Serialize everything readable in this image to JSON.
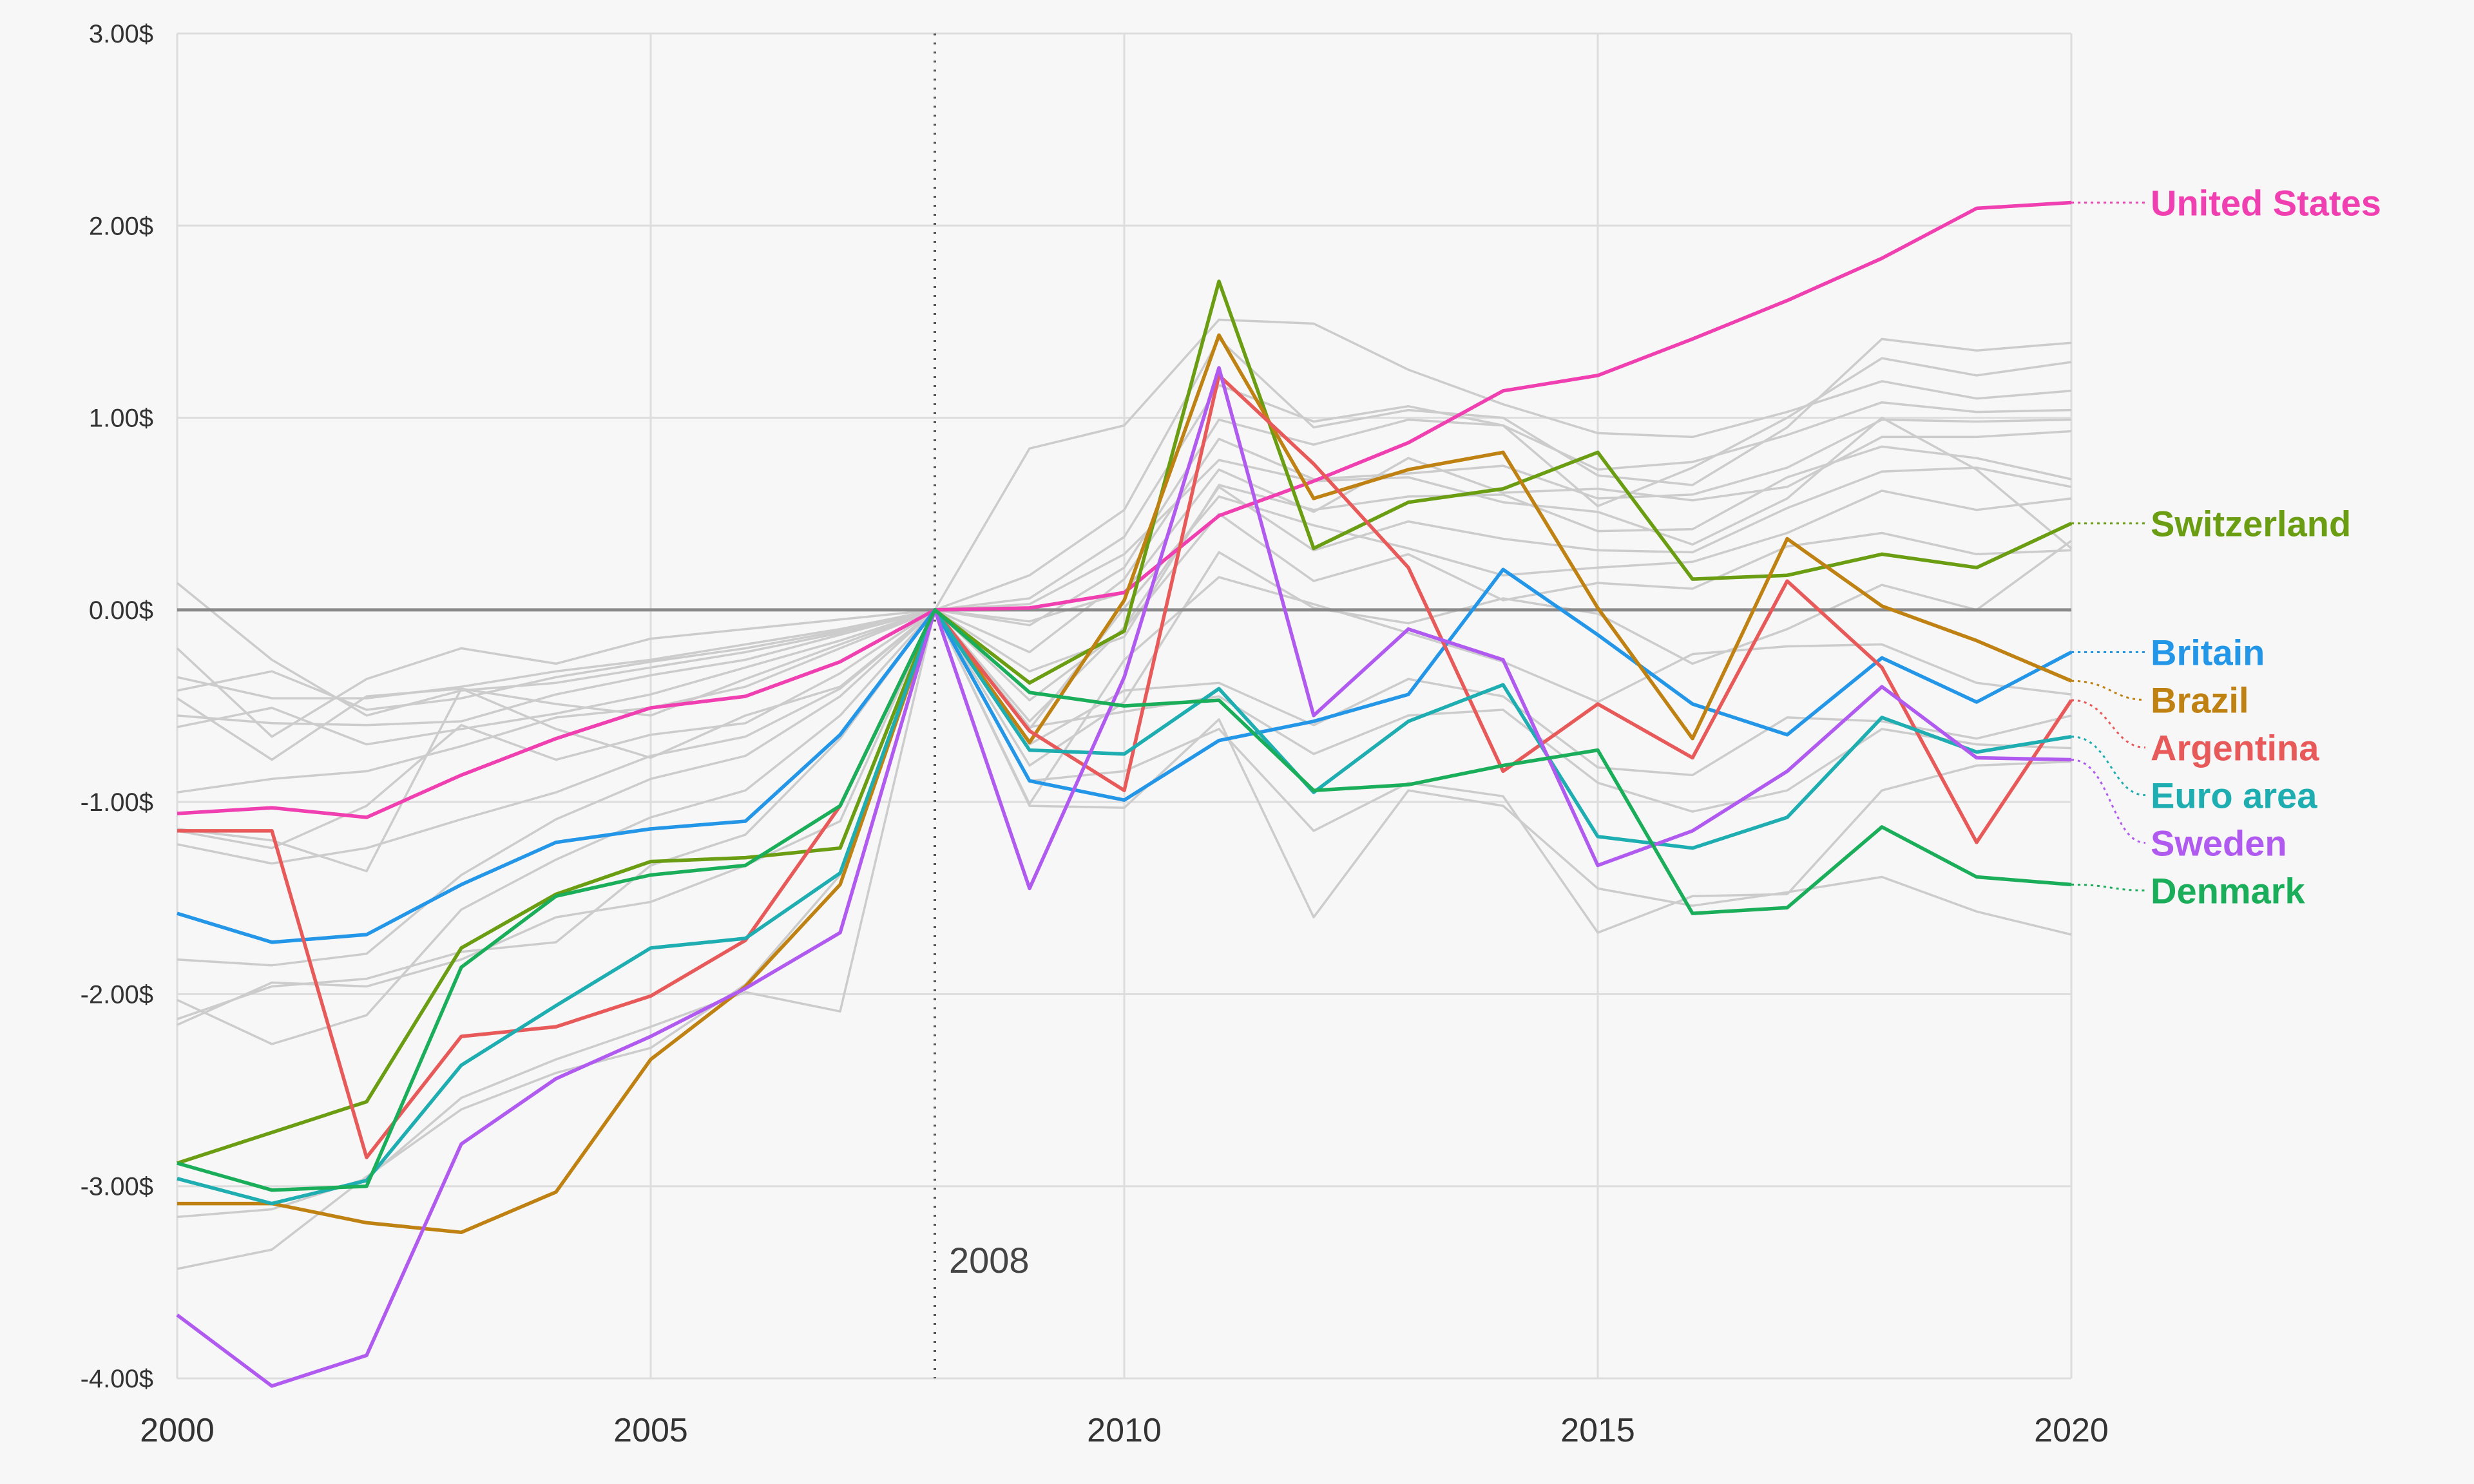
{
  "chart_data": {
    "type": "line",
    "x": [
      2000,
      2001,
      2002,
      2003,
      2004,
      2005,
      2006,
      2007,
      2008,
      2009,
      2010,
      2011,
      2012,
      2013,
      2014,
      2015,
      2016,
      2017,
      2018,
      2019,
      2020
    ],
    "xlim": [
      2000,
      2020
    ],
    "ylim": [
      -4,
      3
    ],
    "xticks": [
      2000,
      2005,
      2010,
      2015,
      2020
    ],
    "xtick_labels": [
      "2000",
      "2005",
      "2010",
      "2015",
      "2020"
    ],
    "yticks": [
      -4,
      -3,
      -2,
      -1,
      0,
      1,
      2,
      3
    ],
    "ytick_labels": [
      "-4.00$",
      "-3.00$",
      "-2.00$",
      "-1.00$",
      "0.00$",
      "1.00$",
      "2.00$",
      "3.00$"
    ],
    "grid": true,
    "reference_line": {
      "x": 2008,
      "label": "2008"
    },
    "legend": "direct labels at right end of lines",
    "series": [
      {
        "name": "United States",
        "color": "#f03fb0",
        "values": [
          -1.06,
          -1.03,
          -1.08,
          -0.86,
          -0.67,
          -0.51,
          -0.45,
          -0.27,
          0.0,
          0.01,
          0.09,
          0.49,
          0.67,
          0.87,
          1.14,
          1.22,
          1.41,
          1.61,
          1.83,
          2.09,
          2.12
        ]
      },
      {
        "name": "Switzerland",
        "color": "#6a9d12",
        "values": [
          -2.88,
          -2.72,
          -2.56,
          -1.76,
          -1.48,
          -1.31,
          -1.29,
          -1.24,
          0.0,
          -0.38,
          -0.11,
          1.71,
          0.32,
          0.56,
          0.63,
          0.82,
          0.16,
          0.18,
          0.29,
          0.22,
          0.45
        ]
      },
      {
        "name": "Britain",
        "color": "#2496e8",
        "values": [
          -1.58,
          -1.73,
          -1.69,
          -1.43,
          -1.21,
          -1.14,
          -1.1,
          -0.65,
          0.0,
          -0.89,
          -0.99,
          -0.68,
          -0.58,
          -0.44,
          0.21,
          -0.13,
          -0.49,
          -0.65,
          -0.25,
          -0.48,
          -0.22
        ]
      },
      {
        "name": "Brazil",
        "color": "#bf8212",
        "values": [
          -3.09,
          -3.09,
          -3.19,
          -3.24,
          -3.03,
          -2.34,
          -1.96,
          -1.43,
          0.0,
          -0.69,
          0.05,
          1.43,
          0.58,
          0.73,
          0.82,
          0.01,
          -0.67,
          0.37,
          0.02,
          -0.16,
          -0.37
        ]
      },
      {
        "name": "Argentina",
        "color": "#e85a5a",
        "values": [
          -1.15,
          -1.15,
          -2.85,
          -2.22,
          -2.17,
          -2.01,
          -1.72,
          -1.02,
          0.0,
          -0.63,
          -0.94,
          1.22,
          0.76,
          0.22,
          -0.84,
          -0.49,
          -0.77,
          0.15,
          -0.3,
          -1.21,
          -0.47
        ]
      },
      {
        "name": "Euro area",
        "color": "#1eadb0",
        "values": [
          -2.96,
          -3.09,
          -2.97,
          -2.37,
          -2.06,
          -1.76,
          -1.71,
          -1.37,
          0.0,
          -0.73,
          -0.75,
          -0.41,
          -0.95,
          -0.58,
          -0.39,
          -1.18,
          -1.24,
          -1.08,
          -0.56,
          -0.74,
          -0.66
        ]
      },
      {
        "name": "Sweden",
        "color": "#b05af0",
        "values": [
          -3.67,
          -4.04,
          -3.88,
          -2.78,
          -2.44,
          -2.22,
          -1.97,
          -1.68,
          0.0,
          -1.45,
          -0.35,
          1.26,
          -0.55,
          -0.1,
          -0.26,
          -1.33,
          -1.15,
          -0.84,
          -0.4,
          -0.77,
          -0.78
        ]
      },
      {
        "name": "Denmark",
        "color": "#1aae5a",
        "values": [
          -2.88,
          -3.02,
          -3.0,
          -1.86,
          -1.49,
          -1.38,
          -1.33,
          -1.02,
          0.0,
          -0.43,
          -0.5,
          -0.47,
          -0.94,
          -0.91,
          -0.81,
          -0.73,
          -1.58,
          -1.55,
          -1.13,
          -1.39,
          -1.43
        ]
      }
    ],
    "background_series": [
      {
        "values": [
          0.14,
          -0.26,
          -0.55,
          -0.42,
          -0.38,
          -0.3,
          -0.22,
          -0.12,
          0.0,
          0.84,
          0.96,
          1.51,
          1.49,
          1.25,
          1.07,
          0.92,
          0.9,
          1.03,
          1.19,
          1.1,
          1.14
        ]
      },
      {
        "values": [
          -0.2,
          -0.66,
          -0.36,
          -0.2,
          -0.28,
          -0.15,
          -0.1,
          -0.05,
          0.0,
          0.18,
          0.52,
          1.41,
          0.95,
          1.04,
          1.0,
          0.7,
          0.65,
          0.95,
          1.41,
          1.35,
          1.39
        ]
      },
      {
        "values": [
          -0.35,
          -0.46,
          -0.46,
          -0.4,
          -0.32,
          -0.26,
          -0.18,
          -0.1,
          0.0,
          0.06,
          0.38,
          1.17,
          0.98,
          1.06,
          0.96,
          0.54,
          0.74,
          1.0,
          1.31,
          1.22,
          1.29
        ]
      },
      {
        "values": [
          -0.42,
          -0.32,
          -0.52,
          -0.46,
          -0.35,
          -0.27,
          -0.2,
          -0.11,
          0.0,
          -0.08,
          0.22,
          0.99,
          0.86,
          0.99,
          0.96,
          0.73,
          0.77,
          0.91,
          1.08,
          1.03,
          1.04
        ]
      },
      {
        "values": [
          -0.55,
          -0.59,
          -0.6,
          -0.58,
          -0.44,
          -0.34,
          -0.26,
          -0.13,
          0.0,
          -0.22,
          0.16,
          0.89,
          0.68,
          0.71,
          0.75,
          0.58,
          0.6,
          0.74,
          0.99,
          0.98,
          0.99
        ]
      },
      {
        "values": [
          -0.61,
          -0.51,
          -0.7,
          -0.62,
          -0.54,
          -0.44,
          -0.3,
          -0.16,
          0.0,
          -0.06,
          0.09,
          0.73,
          0.51,
          0.79,
          0.61,
          0.63,
          0.57,
          0.64,
          0.9,
          0.9,
          0.93
        ]
      },
      {
        "values": [
          -0.95,
          -0.88,
          -0.84,
          -0.71,
          -0.56,
          -0.51,
          -0.4,
          -0.2,
          0.0,
          -0.32,
          -0.14,
          0.65,
          0.52,
          0.59,
          0.6,
          0.41,
          0.42,
          0.69,
          0.85,
          0.79,
          0.68
        ]
      },
      {
        "values": [
          -1.14,
          -1.2,
          -1.36,
          -0.41,
          -0.62,
          -0.77,
          -0.55,
          -0.4,
          0.0,
          -0.58,
          -0.09,
          0.64,
          0.31,
          0.46,
          0.37,
          0.31,
          0.3,
          0.53,
          0.72,
          0.74,
          0.64
        ]
      },
      {
        "values": [
          -1.15,
          -1.24,
          -1.02,
          -0.6,
          -0.78,
          -0.65,
          -0.59,
          -0.33,
          0.0,
          -0.62,
          0.01,
          0.59,
          0.44,
          0.32,
          0.18,
          0.22,
          0.25,
          0.4,
          0.62,
          0.52,
          0.58
        ]
      },
      {
        "values": [
          -1.22,
          -1.32,
          -1.24,
          -1.09,
          -0.95,
          -0.76,
          -0.66,
          -0.41,
          0.0,
          -0.47,
          -0.1,
          0.5,
          0.15,
          0.29,
          0.05,
          0.14,
          0.11,
          0.33,
          0.4,
          0.29,
          0.31
        ]
      },
      {
        "values": [
          -1.82,
          -1.85,
          -1.79,
          -1.38,
          -1.09,
          -0.88,
          -0.76,
          -0.45,
          0.0,
          -0.81,
          -0.48,
          0.3,
          0.01,
          -0.07,
          0.06,
          -0.02,
          -0.28,
          -0.1,
          0.13,
          0.0,
          0.36
        ]
      },
      {
        "values": [
          -2.03,
          -2.26,
          -2.11,
          -1.56,
          -1.3,
          -1.08,
          -0.94,
          -0.55,
          0.0,
          -1.01,
          -0.26,
          0.17,
          0.03,
          -0.12,
          -0.27,
          -0.48,
          -0.23,
          -0.19,
          -0.18,
          -0.38,
          -0.44
        ]
      },
      {
        "values": [
          -2.13,
          -1.96,
          -1.92,
          -1.78,
          -1.73,
          -1.33,
          -1.17,
          -0.67,
          0.0,
          -0.7,
          -0.42,
          -0.38,
          -0.6,
          -0.36,
          -0.45,
          -0.82,
          -0.86,
          -0.56,
          -0.58,
          -0.67,
          -0.55
        ]
      },
      {
        "values": [
          -2.16,
          -1.94,
          -1.96,
          -1.82,
          -1.6,
          -1.52,
          -1.33,
          -1.1,
          0.0,
          -0.61,
          -0.53,
          -0.45,
          -0.75,
          -0.55,
          -0.52,
          -0.9,
          -1.05,
          -0.94,
          -0.62,
          -0.7,
          -0.72
        ]
      },
      {
        "values": [
          -3.16,
          -3.12,
          -2.96,
          -2.54,
          -2.34,
          -2.17,
          -1.99,
          -2.09,
          0.0,
          -1.02,
          -1.03,
          -0.57,
          -1.6,
          -0.94,
          -1.02,
          -1.45,
          -1.54,
          -1.47,
          -1.39,
          -1.57,
          -1.69
        ]
      },
      {
        "values": [
          -3.43,
          -3.33,
          -2.95,
          -2.6,
          -2.41,
          -2.28,
          -1.95,
          -1.38,
          0.0,
          -0.89,
          -0.84,
          -0.62,
          -1.15,
          -0.9,
          -0.97,
          -1.68,
          -1.49,
          -1.48,
          -0.94,
          -0.81,
          -0.79
        ]
      },
      {
        "values": [
          -0.46,
          -0.78,
          -0.45,
          -0.41,
          -0.49,
          -0.55,
          -0.36,
          -0.18,
          0.0,
          0.03,
          0.29,
          0.78,
          0.67,
          0.69,
          0.56,
          0.51,
          0.34,
          0.58,
          1.0,
          0.73,
          0.32
        ]
      }
    ]
  }
}
